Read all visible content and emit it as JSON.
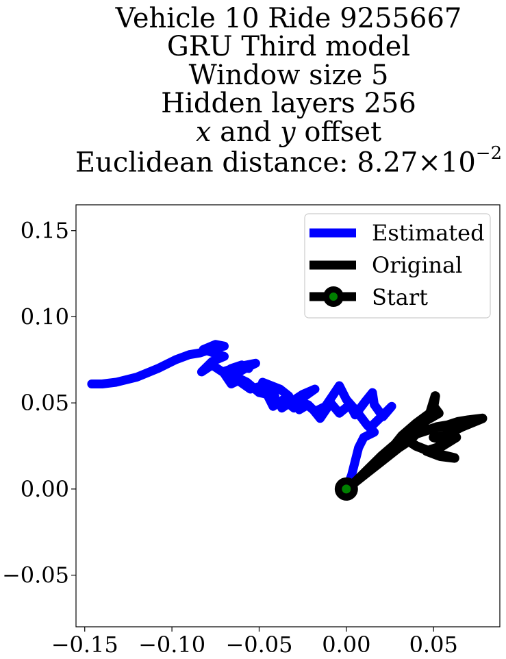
{
  "chart_data": {
    "type": "line",
    "title_lines": [
      "Vehicle 10 Ride 9255667",
      "GRU Third model",
      "Window size 5",
      "Hidden layers 256",
      "x and y offset",
      "Euclidean distance: 8.27 × 10^−2"
    ],
    "title": {
      "line1": "Vehicle 10 Ride 9255667",
      "line2": "GRU Third model",
      "line3": "Window size 5",
      "line4": "Hidden layers 256",
      "line5_var_x": "x",
      "line5_mid": " and ",
      "line5_var_y": "y",
      "line5_rest": " offset",
      "line6_prefix": "Euclidean distance: 8.27×10",
      "line6_exp": "−2"
    },
    "xlim": [
      -0.155,
      0.088
    ],
    "ylim": [
      -0.08,
      0.165
    ],
    "xticks": [
      "−0.15",
      "−0.10",
      "−0.05",
      "0.00",
      "0.05"
    ],
    "xtick_values": [
      -0.15,
      -0.1,
      -0.05,
      0.0,
      0.05
    ],
    "yticks": [
      "−0.05",
      "0.00",
      "0.05",
      "0.10",
      "0.15"
    ],
    "ytick_values": [
      -0.05,
      0.0,
      0.05,
      0.1,
      0.15
    ],
    "grid": false,
    "legend_position": "top-right",
    "legend": [
      "Estimated",
      "Original",
      "Start"
    ],
    "series": [
      {
        "name": "Estimated",
        "color": "#0000ff",
        "points": [
          [
            0.0,
            0.0
          ],
          [
            0.003,
            0.008
          ],
          [
            0.005,
            0.016
          ],
          [
            0.007,
            0.024
          ],
          [
            0.01,
            0.03
          ],
          [
            0.016,
            0.033
          ],
          [
            0.012,
            0.037
          ],
          [
            0.006,
            0.045
          ],
          [
            0.0,
            0.052
          ],
          [
            -0.004,
            0.06
          ],
          [
            -0.008,
            0.054
          ],
          [
            -0.012,
            0.048
          ],
          [
            -0.018,
            0.045
          ],
          [
            -0.022,
            0.049
          ],
          [
            -0.027,
            0.046
          ],
          [
            -0.025,
            0.053
          ],
          [
            -0.018,
            0.058
          ],
          [
            -0.025,
            0.055
          ],
          [
            -0.031,
            0.051
          ],
          [
            -0.037,
            0.047
          ],
          [
            -0.033,
            0.054
          ],
          [
            -0.038,
            0.058
          ],
          [
            -0.048,
            0.062
          ],
          [
            -0.045,
            0.058
          ],
          [
            -0.041,
            0.054
          ],
          [
            -0.05,
            0.056
          ],
          [
            -0.057,
            0.062
          ],
          [
            -0.065,
            0.066
          ],
          [
            -0.058,
            0.07
          ],
          [
            -0.052,
            0.073
          ],
          [
            -0.062,
            0.071
          ],
          [
            -0.071,
            0.068
          ],
          [
            -0.077,
            0.072
          ],
          [
            -0.083,
            0.068
          ],
          [
            -0.077,
            0.074
          ],
          [
            -0.07,
            0.077
          ],
          [
            -0.076,
            0.079
          ],
          [
            -0.082,
            0.081
          ],
          [
            -0.075,
            0.084
          ],
          [
            -0.07,
            0.083
          ],
          [
            -0.078,
            0.081
          ],
          [
            -0.084,
            0.079
          ],
          [
            -0.09,
            0.078
          ],
          [
            -0.098,
            0.075
          ],
          [
            -0.108,
            0.07
          ],
          [
            -0.12,
            0.065
          ],
          [
            -0.132,
            0.062
          ],
          [
            -0.14,
            0.061
          ],
          [
            -0.146,
            0.061
          ]
        ],
        "extra_path": [
          [
            0.014,
            0.036
          ],
          [
            0.018,
            0.04
          ],
          [
            0.022,
            0.044
          ],
          [
            0.026,
            0.048
          ],
          [
            0.021,
            0.042
          ],
          [
            0.016,
            0.049
          ],
          [
            0.015,
            0.056
          ],
          [
            0.011,
            0.051
          ],
          [
            0.005,
            0.043
          ],
          [
            0.002,
            0.049
          ],
          [
            -0.004,
            0.044
          ],
          [
            -0.009,
            0.05
          ],
          [
            -0.015,
            0.041
          ],
          [
            -0.019,
            0.046
          ],
          [
            -0.024,
            0.05
          ],
          [
            -0.03,
            0.047
          ],
          [
            -0.036,
            0.052
          ],
          [
            -0.042,
            0.048
          ],
          [
            -0.048,
            0.06
          ],
          [
            -0.055,
            0.058
          ],
          [
            -0.062,
            0.063
          ],
          [
            -0.066,
            0.061
          ],
          [
            -0.07,
            0.067
          ],
          [
            -0.066,
            0.07
          ],
          [
            -0.06,
            0.072
          ],
          [
            -0.056,
            0.07
          ]
        ]
      },
      {
        "name": "Original",
        "color": "#000000",
        "points": [
          [
            0.0,
            0.0
          ],
          [
            0.01,
            0.008
          ],
          [
            0.02,
            0.016
          ],
          [
            0.03,
            0.024
          ],
          [
            0.036,
            0.028
          ],
          [
            0.04,
            0.032
          ],
          [
            0.046,
            0.034
          ],
          [
            0.052,
            0.036
          ],
          [
            0.058,
            0.037
          ],
          [
            0.064,
            0.039
          ],
          [
            0.07,
            0.04
          ],
          [
            0.078,
            0.041
          ],
          [
            0.066,
            0.036
          ],
          [
            0.056,
            0.031
          ],
          [
            0.05,
            0.03
          ],
          [
            0.058,
            0.028
          ],
          [
            0.063,
            0.03
          ],
          [
            0.055,
            0.025
          ],
          [
            0.046,
            0.022
          ],
          [
            0.054,
            0.019
          ],
          [
            0.062,
            0.018
          ],
          [
            0.05,
            0.021
          ],
          [
            0.04,
            0.025
          ],
          [
            0.034,
            0.029
          ],
          [
            0.04,
            0.035
          ],
          [
            0.046,
            0.04
          ],
          [
            0.053,
            0.044
          ],
          [
            0.05,
            0.048
          ],
          [
            0.051,
            0.054
          ],
          [
            0.048,
            0.044
          ],
          [
            0.04,
            0.038
          ],
          [
            0.032,
            0.031
          ],
          [
            0.028,
            0.026
          ],
          [
            0.02,
            0.019
          ],
          [
            0.012,
            0.011
          ],
          [
            0.005,
            0.004
          ]
        ]
      }
    ],
    "start_point": [
      0.0,
      0.0
    ],
    "start_fill": "#008000",
    "start_edge": "#000000"
  }
}
